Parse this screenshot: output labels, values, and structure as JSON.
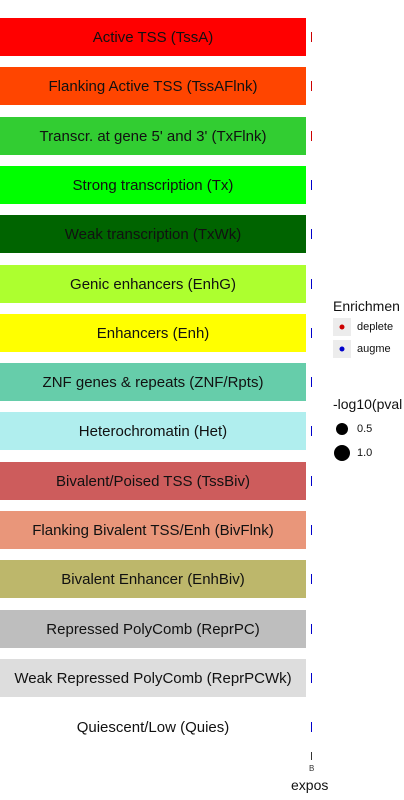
{
  "chart_data": {
    "type": "scatter",
    "categories": [
      "Active TSS (TssA)",
      "Flanking Active TSS (TssAFlnk)",
      "Transcr. at gene 5' and 3' (TxFlnk)",
      "Strong transcription (Tx)",
      "Weak transcription (TxWk)",
      "Genic enhancers (EnhG)",
      "Enhancers (Enh)",
      "ZNF genes & repeats (ZNF/Rpts)",
      "Heterochromatin (Het)",
      "Bivalent/Poised TSS (TssBiv)",
      "Flanking Bivalent TSS/Enh (BivFlnk)",
      "Bivalent Enhancer (EnhBiv)",
      "Repressed PolyComb (ReprPC)",
      "Weak Repressed PolyComb (ReprPCWk)",
      "Quiescent/Low (Quies)"
    ],
    "row_colors": [
      "#ff0000",
      "#ff4500",
      "#32cd32",
      "#00ff00",
      "#006400",
      "#adff2f",
      "#ffff00",
      "#66cdaa",
      "#b0eeee",
      "#cd5c5c",
      "#e9967a",
      "#bdb76b",
      "#bebebe",
      "#dddddd",
      "#ffffff"
    ],
    "enrichment": [
      "depleted",
      "depleted",
      "depleted",
      "augmented",
      "augmented",
      "augmented",
      "augmented",
      "augmented",
      "augmented",
      "augmented",
      "augmented",
      "augmented",
      "augmented",
      "augmented",
      "augmented"
    ],
    "xlabel": "expos",
    "x_tick": "B",
    "legend": {
      "color_title": "Enrichmen",
      "color_items": [
        {
          "label": "deplete",
          "color": "#cc0000"
        },
        {
          "label": "augme",
          "color": "#0000cc"
        }
      ],
      "size_title": "-log10(pval",
      "size_items": [
        {
          "label": "0.5",
          "value": 0.5
        },
        {
          "label": "1.0",
          "value": 1.0
        }
      ],
      "placement": "right"
    }
  }
}
